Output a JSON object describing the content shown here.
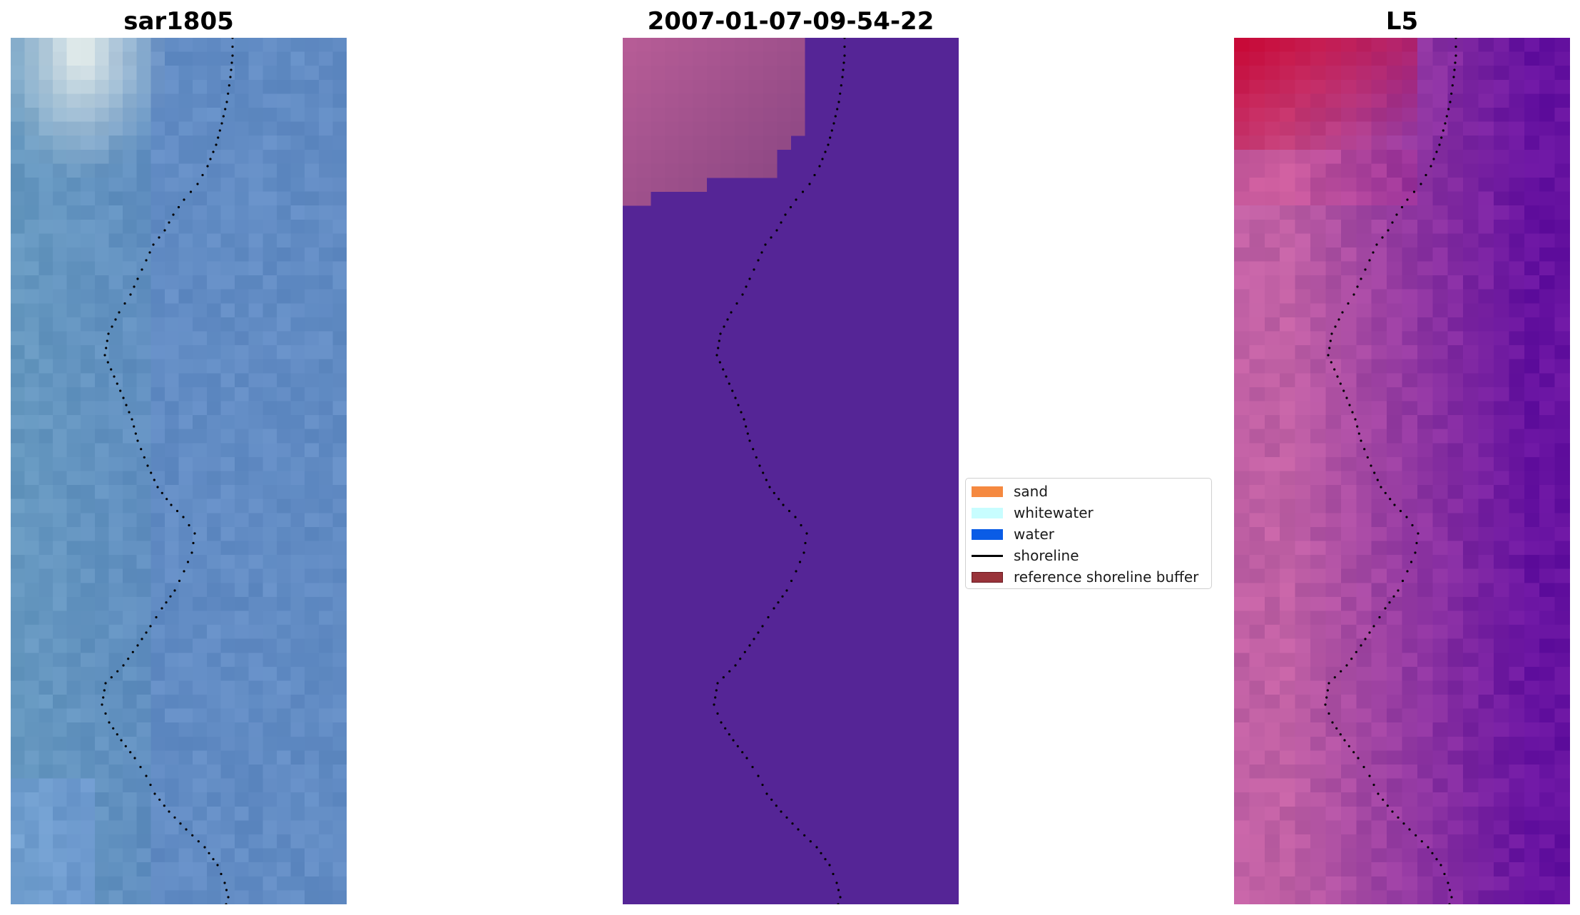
{
  "panels": {
    "rgb": {
      "title": "sar1805"
    },
    "classified": {
      "title": "2007-01-07-09-54-22"
    },
    "index": {
      "title": "L5"
    }
  },
  "legend": {
    "items": [
      {
        "label": "sand",
        "kind": "patch",
        "color": "#f58940"
      },
      {
        "label": "whitewater",
        "kind": "patch",
        "color": "#c8fdff"
      },
      {
        "label": "water",
        "kind": "patch",
        "color": "#0a5ce6"
      },
      {
        "label": "shoreline",
        "kind": "line",
        "color": "#000000"
      },
      {
        "label": "reference shoreline buffer",
        "kind": "patch",
        "color": "#99333a",
        "edge": "#6b1a22"
      }
    ]
  },
  "colors": {
    "water_class": "#552596",
    "buffer_overlay": "#b05a92",
    "shoreline_dots": "#000000"
  }
}
